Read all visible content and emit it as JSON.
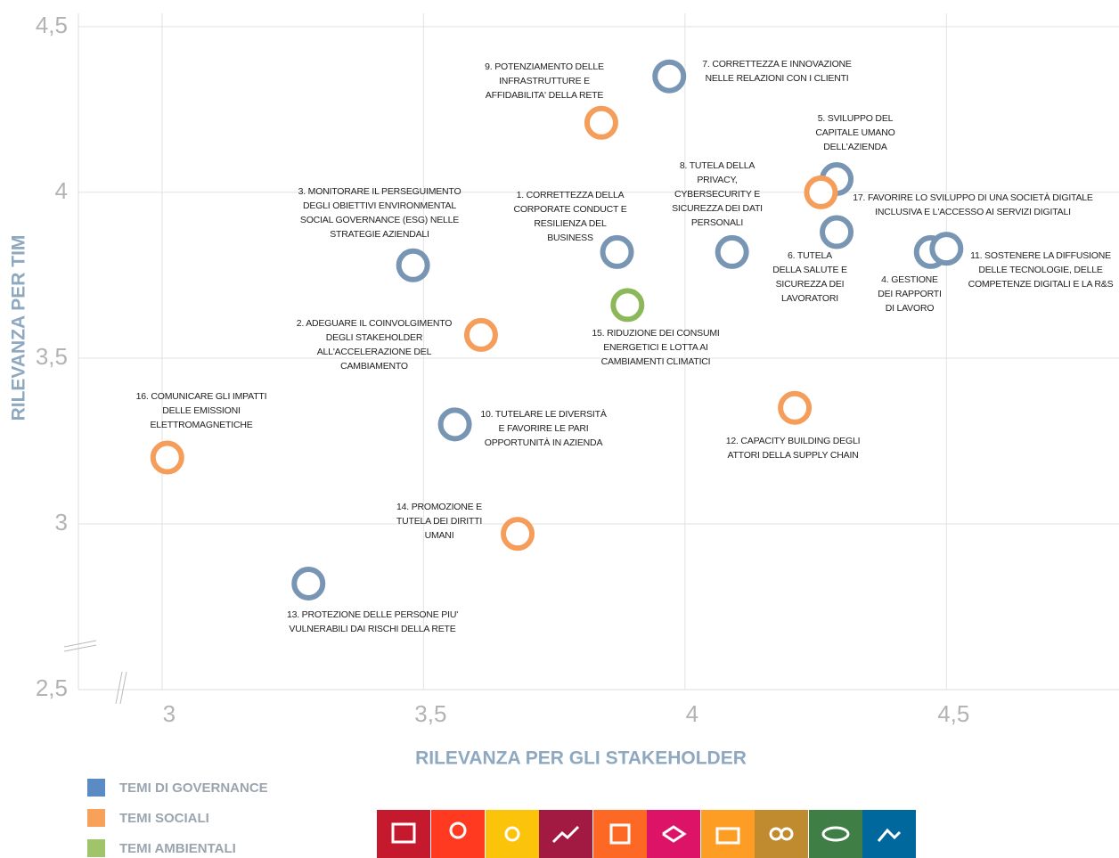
{
  "chart_data": {
    "type": "scatter",
    "xlabel": "RILEVANZA  PER GLI STAKEHOLDER",
    "ylabel": "RILEVANZA  PER TIM",
    "xlim": [
      2.84,
      4.83
    ],
    "ylim": [
      2.5,
      4.54
    ],
    "xticks": [
      {
        "value": 3,
        "label": "3"
      },
      {
        "value": 3.5,
        "label": "3,5"
      },
      {
        "value": 4,
        "label": "4"
      },
      {
        "value": 4.5,
        "label": "4,5"
      }
    ],
    "yticks": [
      {
        "value": 2.5,
        "label": "2,5"
      },
      {
        "value": 3,
        "label": "3"
      },
      {
        "value": 3.5,
        "label": "3,5"
      },
      {
        "value": 4,
        "label": "4"
      },
      {
        "value": 4.5,
        "label": "4,5"
      }
    ],
    "grid": true,
    "legend": "bottom-left",
    "series": [
      {
        "name": "TEMI DI GOVERNANCE",
        "color": "#7896b4",
        "legend_color": "#5b8bc4",
        "x": [
          3.97,
          4.29,
          4.29,
          4.09,
          3.87,
          3.48,
          4.47,
          4.5,
          3.56,
          3.28
        ],
        "values": [
          4.35,
          4.04,
          3.88,
          3.82,
          3.82,
          3.78,
          3.82,
          3.83,
          3.3,
          2.82
        ],
        "labels": [
          [
            "7. CORRETTEZZA E INNOVAZIONE",
            "NELLE RELAZIONI CON I CLIENTI"
          ],
          [
            "5. SVILUPPO DEL",
            "CAPITALE UMANO",
            "DELL'AZIENDA"
          ],
          [
            "6. TUTELA",
            "DELLA SALUTE E",
            "SICUREZZA DEI",
            "LAVORATORI"
          ],
          [
            "8. TUTELA DELLA",
            "PRIVACY,",
            "CYBERSECURITY E",
            "SICUREZZA DEI DATI",
            "PERSONALI"
          ],
          [
            "1. CORRETTEZZA DELLA",
            "CORPORATE CONDUCT E",
            "RESILIENZA DEL",
            "BUSINESS"
          ],
          [
            "3. MONITORARE IL PERSEGUIMENTO",
            "DEGLI OBIETTIVI ENVIRONMENTAL",
            "SOCIAL GOVERNANCE (ESG) NELLE",
            "STRATEGIE AZIENDALI"
          ],
          [
            "4. GESTIONE",
            "DEI RAPPORTI",
            "DI LAVORO"
          ],
          [
            "11. SOSTENERE LA DIFFUSIONE",
            "DELLE TECNOLOGIE, DELLE",
            "COMPETENZE DIGITALI E LA R&S"
          ],
          [
            "10. TUTELARE LE DIVERSITÀ",
            "E FAVORIRE LE PARI",
            "OPPORTUNITÀ IN AZIENDA"
          ],
          [
            "13. PROTEZIONE DELLE PERSONE PIU'",
            "VULNERABILI DAI RISCHI DELLA RETE"
          ]
        ]
      },
      {
        "name": "TEMI SOCIALI",
        "color": "#f59d5a",
        "legend_color": "#f7a15a",
        "x": [
          3.84,
          4.26,
          3.61,
          4.21,
          3.01,
          3.68
        ],
        "values": [
          4.21,
          4.0,
          3.57,
          3.35,
          3.2,
          2.97
        ],
        "labels": [
          [
            "9. POTENZIAMENTO DELLE",
            "INFRASTRUTTURE E",
            "AFFIDABILITA' DELLA RETE"
          ],
          [
            "17. FAVORIRE LO SVILUPPO DI UNA SOCIETÀ DIGITALE",
            "INCLUSIVA E L'ACCESSO AI SERVIZI DIGITALI"
          ],
          [
            "2. ADEGUARE IL COINVOLGIMENTO",
            "DEGLI STAKEHOLDER",
            "ALL'ACCELERAZIONE DEL",
            "CAMBIAMENTO"
          ],
          [
            "12. CAPACITY BUILDING DEGLI",
            "ATTORI DELLA SUPPLY CHAIN"
          ],
          [
            "16. COMUNICARE GLI IMPATTI",
            "DELLE EMISSIONI",
            "ELETTROMAGNETICHE"
          ],
          [
            "14. PROMOZIONE E",
            "TUTELA DEI DIRITTI",
            "UMANI"
          ]
        ]
      },
      {
        "name": "TEMI AMBIENTALI",
        "color": "#8db85a",
        "legend_color": "#9fc46a",
        "x": [
          3.89
        ],
        "values": [
          3.66
        ],
        "labels": [
          [
            "15. RIDUZIONE DEI CONSUMI",
            "ENERGETICI E LOTTA AI",
            "CAMBIAMENTI CLIMATICI"
          ]
        ]
      }
    ]
  }
}
